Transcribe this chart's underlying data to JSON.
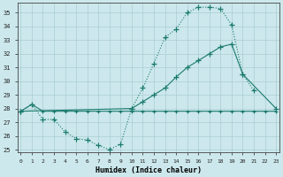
{
  "line_top_x": [
    0,
    1,
    2,
    3,
    4,
    5,
    6,
    7,
    8,
    9,
    10,
    11,
    12,
    13,
    14,
    15,
    16,
    17,
    18,
    19,
    20,
    21
  ],
  "line_top_y": [
    27.8,
    28.3,
    27.2,
    27.2,
    26.3,
    25.8,
    25.7,
    25.3,
    25.0,
    25.4,
    28.0,
    29.5,
    31.3,
    33.2,
    33.8,
    35.0,
    35.4,
    35.4,
    35.3,
    34.1,
    30.5,
    29.3
  ],
  "line_mid_x": [
    0,
    10,
    11,
    12,
    13,
    14,
    15,
    16,
    17,
    18,
    19,
    20,
    23
  ],
  "line_mid_y": [
    27.8,
    28.0,
    28.5,
    29.0,
    29.5,
    30.3,
    31.0,
    31.5,
    32.0,
    32.5,
    32.7,
    30.5,
    28.0
  ],
  "line_flat_x": [
    0,
    1,
    2,
    3,
    4,
    5,
    6,
    7,
    8,
    9,
    10,
    11,
    12,
    13,
    14,
    15,
    16,
    17,
    18,
    19,
    20,
    21,
    22,
    23
  ],
  "line_flat_y": [
    27.8,
    28.3,
    27.8,
    27.8,
    27.8,
    27.8,
    27.8,
    27.8,
    27.8,
    27.8,
    27.8,
    27.8,
    27.8,
    27.8,
    27.8,
    27.8,
    27.8,
    27.8,
    27.8,
    27.8,
    27.8,
    27.8,
    27.8,
    27.8
  ],
  "color": "#1a7a6e",
  "bg_color": "#cce8ec",
  "grid_color": "#aacdd4",
  "xlabel": "Humidex (Indice chaleur)",
  "ylim": [
    24.8,
    35.7
  ],
  "xlim": [
    -0.3,
    23.3
  ],
  "yticks": [
    25,
    26,
    27,
    28,
    29,
    30,
    31,
    32,
    33,
    34,
    35
  ],
  "xticks": [
    0,
    1,
    2,
    3,
    4,
    5,
    6,
    7,
    8,
    9,
    10,
    11,
    12,
    13,
    14,
    15,
    16,
    17,
    18,
    19,
    20,
    21,
    22,
    23
  ]
}
